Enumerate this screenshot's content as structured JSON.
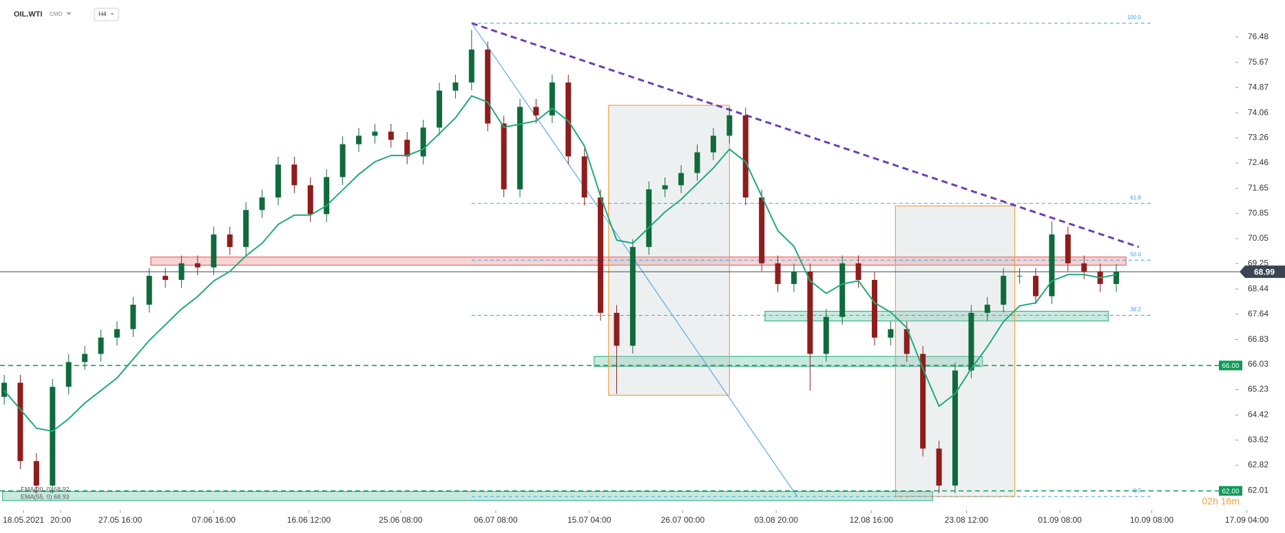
{
  "header": {
    "symbol": "OIL.WTI",
    "market": "CMD",
    "interval": "H4"
  },
  "chart_data": {
    "type": "candlestick",
    "x": [
      0,
      1,
      2,
      3,
      4,
      5,
      6,
      7,
      8,
      9,
      10,
      11,
      12,
      13,
      14,
      15,
      16,
      17,
      18,
      19,
      20,
      21,
      22,
      23,
      24,
      25,
      26,
      27,
      28,
      29,
      30,
      31,
      32,
      33,
      34,
      35,
      36,
      37,
      38,
      39,
      40,
      41,
      42,
      43,
      44,
      45,
      46,
      47,
      48,
      49,
      50,
      51,
      52,
      53,
      54,
      55,
      56,
      57,
      58,
      59,
      60,
      61,
      62,
      63,
      64,
      65,
      66,
      67,
      68,
      69
    ],
    "open": [
      65.0,
      65.45,
      62.95,
      62.17,
      65.32,
      66.11,
      66.37,
      66.89,
      67.16,
      67.94,
      68.86,
      68.73,
      69.26,
      69.13,
      70.18,
      69.78,
      70.96,
      71.36,
      72.41,
      71.75,
      70.83,
      72.01,
      73.06,
      73.33,
      73.46,
      73.2,
      72.67,
      73.59,
      74.77,
      75.03,
      76.08,
      73.72,
      71.62,
      74.25,
      73.98,
      75.03,
      72.67,
      71.36,
      67.68,
      66.63,
      69.78,
      71.62,
      71.75,
      72.14,
      72.8,
      73.33,
      73.98,
      71.36,
      69.26,
      68.6,
      69.0,
      66.37,
      67.55,
      69.26,
      68.73,
      66.89,
      67.16,
      66.37,
      63.35,
      62.17,
      65.84,
      67.68,
      67.94,
      68.86,
      68.86,
      68.21,
      70.18,
      69.26,
      69.0,
      68.6
    ],
    "high": [
      65.7,
      65.7,
      63.2,
      65.57,
      66.36,
      66.62,
      67.14,
      67.41,
      68.19,
      69.11,
      69.11,
      69.51,
      69.51,
      70.43,
      70.43,
      71.21,
      71.61,
      72.66,
      72.66,
      72.0,
      72.26,
      73.31,
      73.58,
      73.71,
      73.71,
      73.45,
      73.84,
      75.02,
      75.28,
      76.7,
      76.33,
      73.97,
      74.5,
      74.5,
      75.28,
      75.28,
      72.92,
      71.61,
      67.93,
      70.03,
      71.87,
      72.0,
      72.39,
      73.05,
      73.58,
      74.23,
      74.23,
      71.61,
      69.51,
      69.25,
      69.25,
      67.8,
      69.51,
      69.51,
      68.98,
      67.41,
      67.41,
      66.62,
      63.6,
      66.09,
      67.93,
      68.19,
      69.11,
      69.11,
      69.11,
      70.6,
      70.43,
      69.51,
      69.25,
      69.24
    ],
    "low": [
      64.75,
      62.7,
      61.92,
      61.92,
      65.07,
      65.86,
      66.12,
      66.64,
      66.91,
      67.69,
      68.48,
      68.48,
      68.88,
      68.88,
      69.53,
      69.53,
      70.71,
      71.11,
      71.5,
      70.58,
      70.58,
      71.76,
      72.81,
      73.08,
      72.95,
      72.42,
      72.42,
      73.34,
      74.52,
      74.78,
      73.47,
      71.37,
      71.37,
      73.73,
      73.73,
      72.42,
      71.11,
      67.43,
      65.1,
      66.38,
      69.53,
      71.37,
      71.5,
      71.89,
      72.55,
      73.08,
      71.11,
      69.01,
      68.35,
      68.35,
      65.2,
      66.12,
      67.3,
      68.48,
      66.64,
      66.64,
      66.12,
      63.1,
      61.92,
      61.92,
      65.59,
      67.43,
      67.69,
      68.61,
      67.96,
      67.96,
      69.01,
      68.75,
      68.35,
      68.35
    ],
    "close": [
      65.45,
      62.95,
      62.17,
      65.32,
      66.11,
      66.37,
      66.89,
      67.16,
      67.94,
      68.86,
      68.73,
      69.26,
      69.13,
      70.18,
      69.78,
      70.96,
      71.36,
      72.41,
      71.75,
      70.83,
      72.01,
      73.06,
      73.33,
      73.46,
      73.2,
      72.67,
      73.59,
      74.77,
      75.03,
      76.08,
      73.72,
      71.62,
      74.25,
      73.98,
      75.03,
      72.67,
      71.36,
      67.68,
      66.63,
      69.78,
      71.62,
      71.75,
      72.14,
      72.8,
      73.33,
      73.98,
      71.36,
      69.26,
      68.6,
      69.0,
      66.37,
      67.55,
      69.26,
      68.73,
      66.89,
      67.16,
      66.37,
      63.35,
      62.17,
      65.84,
      67.68,
      67.94,
      68.86,
      68.86,
      68.21,
      70.18,
      69.26,
      69.0,
      68.6,
      68.99
    ],
    "colors": {
      "up": "#0f6b3c",
      "down": "#8e1d1d"
    },
    "ema": {
      "color": "#1fa97a",
      "values": [
        65.2,
        64.6,
        64.0,
        63.9,
        64.3,
        64.8,
        65.2,
        65.6,
        66.2,
        66.8,
        67.3,
        67.8,
        68.2,
        68.7,
        69.0,
        69.5,
        69.9,
        70.5,
        70.8,
        70.8,
        71.1,
        71.6,
        72.1,
        72.5,
        72.7,
        72.7,
        72.9,
        73.4,
        73.9,
        74.6,
        74.4,
        73.6,
        73.7,
        73.8,
        74.2,
        73.8,
        73.0,
        71.4,
        70.0,
        69.9,
        70.4,
        70.9,
        71.3,
        71.8,
        72.3,
        72.9,
        72.5,
        71.4,
        70.3,
        69.8,
        68.7,
        68.3,
        68.6,
        68.7,
        68.0,
        67.7,
        67.2,
        65.9,
        64.7,
        65.1,
        65.9,
        66.6,
        67.4,
        67.9,
        68.0,
        68.7,
        68.9,
        68.9,
        68.8,
        68.9
      ]
    },
    "legend": [
      "EMA(30, 0) 68.92",
      "EMA(55, 0) 68.93"
    ],
    "xlim": [
      -0.26,
      76.39
    ],
    "ylim": [
      61.38,
      77.66
    ],
    "xticks": [
      {
        "value": 1.2,
        "label": "18.05.2021"
      },
      {
        "value": 3.5,
        "label": "20:00"
      },
      {
        "value": 7.2,
        "label": "27.05 16:00"
      },
      {
        "value": 13.0,
        "label": "07.06 16:00"
      },
      {
        "value": 18.9,
        "label": "16.06 12:00"
      },
      {
        "value": 24.6,
        "label": "25.06 08:00"
      },
      {
        "value": 30.5,
        "label": "06.07 08:00"
      },
      {
        "value": 36.3,
        "label": "15.07 04:00"
      },
      {
        "value": 42.1,
        "label": "26.07 00:00"
      },
      {
        "value": 47.9,
        "label": "03.08 20:00"
      },
      {
        "value": 53.8,
        "label": "12.08 16:00"
      },
      {
        "value": 59.7,
        "label": "23.08 12:00"
      },
      {
        "value": 65.5,
        "label": "01.09 08:00"
      },
      {
        "value": 71.2,
        "label": "10.09 08:00"
      },
      {
        "value": 77.1,
        "label": "17.09 04:00"
      }
    ],
    "yticks": [
      76.48,
      75.67,
      74.87,
      74.06,
      73.26,
      72.46,
      71.65,
      70.85,
      70.05,
      69.25,
      68.44,
      67.64,
      66.83,
      66.03,
      65.23,
      64.42,
      63.62,
      62.82,
      62.01
    ],
    "last_price": 68.99,
    "price_tags": [
      {
        "value": 66,
        "label": "66.00",
        "color": "#0f9a5a"
      },
      {
        "value": 62,
        "label": "62.00",
        "color": "#0f9a5a"
      }
    ],
    "timer": "02h 16m",
    "fib": {
      "color": "#3a9ee0",
      "x": [
        29.0,
        71.3
      ],
      "levels": [
        {
          "label": "100.0",
          "value": 76.92
        },
        {
          "label": "61.8",
          "value": 71.17
        },
        {
          "label": "50.0",
          "value": 69.36
        },
        {
          "label": "38.2",
          "value": 67.6
        },
        {
          "label": "0.0",
          "value": 61.82
        }
      ]
    },
    "trendlines": [
      {
        "x": [
          29.0,
          70.4
        ],
        "y": [
          76.92,
          69.78
        ],
        "color": "#6a3fb5",
        "dashed": true
      },
      {
        "x": [
          29.0,
          49.2
        ],
        "y": [
          76.92,
          61.82
        ],
        "color": "#3a9ee0",
        "dashed": false
      }
    ],
    "zones": [
      {
        "x": [
          9.1,
          69.6
        ],
        "y": [
          69.2,
          69.46
        ],
        "color": "#e05050"
      },
      {
        "x": [
          47.2,
          68.5
        ],
        "y": [
          67.42,
          67.73
        ],
        "color": "#1fa97a"
      },
      {
        "x": [
          36.6,
          60.7
        ],
        "y": [
          65.97,
          66.29
        ],
        "color": "#1fa97a"
      },
      {
        "x": [
          -0.1,
          57.6
        ],
        "y": [
          61.69,
          61.98
        ],
        "color": "#1fa97a"
      }
    ],
    "boxes": [
      {
        "x": [
          37.5,
          45.0
        ],
        "y": [
          65.05,
          74.3
        ],
        "color": "#f0a040"
      },
      {
        "x": [
          55.3,
          62.7
        ],
        "y": [
          61.82,
          71.09
        ],
        "color": "#f0a040"
      }
    ]
  }
}
